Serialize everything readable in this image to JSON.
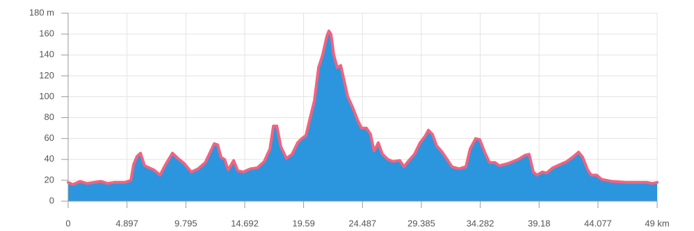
{
  "chart_data": {
    "type": "area",
    "x": [
      0,
      0.4,
      0.98,
      1.56,
      2.14,
      2.72,
      3.3,
      3.88,
      4.74,
      5.21,
      5.44,
      5.73,
      6.02,
      6.36,
      6.73,
      7.13,
      7.64,
      8.1,
      8.68,
      9.14,
      9.66,
      10.24,
      10.82,
      11.4,
      11.86,
      12.15,
      12.44,
      12.73,
      13.02,
      13.31,
      13.77,
      14.12,
      14.58,
      15.16,
      15.74,
      16.31,
      16.78,
      17.07,
      17.36,
      17.7,
      18.16,
      18.63,
      19.09,
      19.44,
      19.78,
      20.13,
      20.48,
      20.83,
      21.17,
      21.52,
      21.69,
      21.87,
      22.1,
      22.39,
      22.68,
      22.97,
      23.26,
      23.66,
      24.07,
      24.41,
      24.82,
      25.16,
      25.45,
      25.8,
      26.15,
      26.61,
      27.02,
      27.59,
      27.94,
      28.35,
      28.81,
      29.27,
      29.68,
      29.97,
      30.31,
      30.66,
      31.12,
      31.53,
      31.93,
      32.51,
      33.09,
      33.44,
      33.9,
      34.25,
      34.65,
      35.06,
      35.52,
      35.87,
      36.56,
      37.43,
      38.01,
      38.35,
      38.7,
      38.99,
      39.45,
      39.8,
      40.32,
      40.9,
      41.48,
      42.06,
      42.46,
      42.81,
      43.22,
      43.51,
      43.97,
      44.37,
      45.24,
      46.39,
      47.55,
      48.13,
      48.59,
      49.0
    ],
    "values": [
      18,
      16,
      19,
      17,
      18,
      19,
      17,
      18,
      18,
      20,
      35,
      43,
      46,
      34,
      32,
      30,
      25,
      35,
      46,
      41,
      36,
      28,
      31,
      37,
      48,
      55,
      54,
      42,
      40,
      30,
      39,
      29,
      28,
      31,
      32,
      38,
      50,
      72,
      72,
      52,
      41,
      45,
      56,
      60,
      63,
      80,
      96,
      128,
      140,
      158,
      163,
      160,
      140,
      128,
      130,
      115,
      100,
      90,
      78,
      70,
      70,
      64,
      48,
      56,
      45,
      40,
      38,
      39,
      33,
      39,
      45,
      56,
      62,
      68,
      64,
      53,
      47,
      40,
      33,
      31,
      33,
      50,
      60,
      59,
      47,
      37,
      37,
      34,
      36,
      40,
      44,
      45,
      28,
      25,
      28,
      27,
      32,
      35,
      38,
      43,
      47,
      42,
      30,
      25,
      25,
      21,
      19,
      18,
      18,
      18,
      17,
      18
    ],
    "color": "#2b96dd",
    "line_color": "#f3627f",
    "xlim": [
      0,
      49
    ],
    "xticks": [
      0,
      4.897,
      9.795,
      14.692,
      19.59,
      24.487,
      29.385,
      34.282,
      39.18,
      44.077,
      {
        "value": 49,
        "label": "49 km"
      }
    ],
    "ylim": [
      0,
      180
    ],
    "yticks": [
      0,
      20,
      40,
      60,
      80,
      100,
      120,
      140,
      160,
      {
        "value": 180,
        "label": "180 m"
      }
    ],
    "grid": true
  }
}
